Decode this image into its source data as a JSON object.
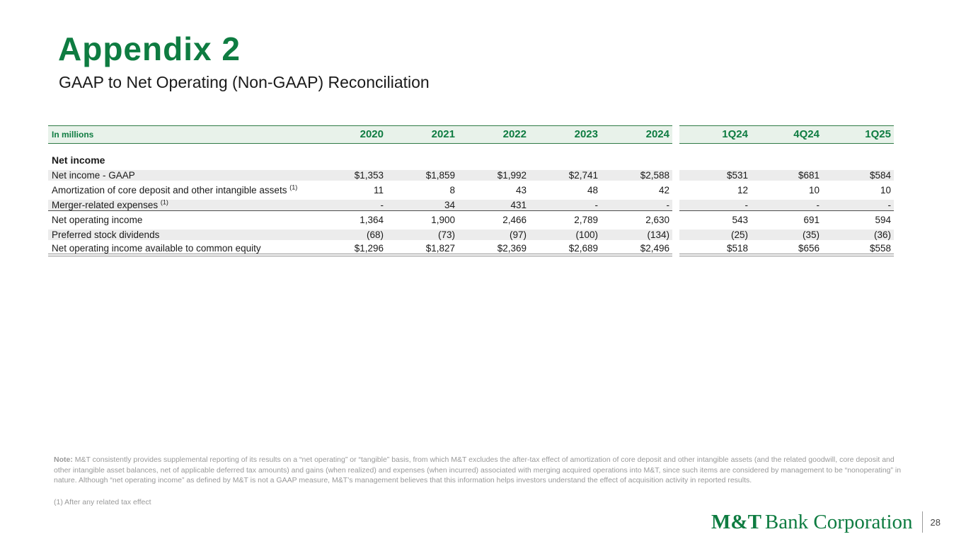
{
  "slide": {
    "title": "Appendix 2",
    "subtitle": "GAAP to Net Operating (Non-GAAP) Reconciliation"
  },
  "colors": {
    "accent_green": "#0e7c41",
    "header_background": "#e8f2ea",
    "row_stripe": "#ececec",
    "note_gray": "#999999"
  },
  "table": {
    "corner_label": "In millions",
    "annual_columns": [
      "2020",
      "2021",
      "2022",
      "2023",
      "2024"
    ],
    "quarter_columns": [
      "1Q24",
      "4Q24",
      "1Q25"
    ],
    "section_header": "Net income",
    "rows": [
      {
        "label": "Net income - GAAP",
        "sup": "",
        "annual": [
          "$1,353",
          "$1,859",
          "$1,992",
          "$2,741",
          "$2,588"
        ],
        "quarters": [
          "$531",
          "$681",
          "$584"
        ]
      },
      {
        "label": "Amortization of core deposit and other intangible assets ",
        "sup": "(1)",
        "annual": [
          "11",
          "8",
          "43",
          "48",
          "42"
        ],
        "quarters": [
          "12",
          "10",
          "10"
        ]
      },
      {
        "label": "Merger-related expenses ",
        "sup": "(1)",
        "annual": [
          "-",
          "34",
          "431",
          "-",
          "-"
        ],
        "quarters": [
          "-",
          "-",
          "-"
        ]
      },
      {
        "label": "Net operating income",
        "sup": "",
        "annual": [
          "1,364",
          "1,900",
          "2,466",
          "2,789",
          "2,630"
        ],
        "quarters": [
          "543",
          "691",
          "594"
        ]
      },
      {
        "label": "Preferred stock dividends",
        "sup": "",
        "annual": [
          "(68)",
          "(73)",
          "(97)",
          "(100)",
          "(134)"
        ],
        "quarters": [
          "(25)",
          "(35)",
          "(36)"
        ]
      },
      {
        "label": "Net operating income available to common equity",
        "sup": "",
        "annual": [
          "$1,296",
          "$1,827",
          "$2,369",
          "$2,689",
          "$2,496"
        ],
        "quarters": [
          "$518",
          "$656",
          "$558"
        ]
      }
    ]
  },
  "notes": {
    "note_label": "Note:",
    "note_text": " M&T consistently provides supplemental reporting of its results on a “net operating” or “tangible” basis, from which M&T excludes the after-tax effect of amortization of core deposit and other intangible assets (and the related goodwill, core deposit and other intangible asset balances, net of applicable deferred tax amounts) and gains (when realized) and expenses (when incurred) associated with merging acquired operations into M&T, since such items are considered by management to be “nonoperating” in nature. Although “net operating income” as defined by M&T is not a GAAP measure, M&T’s management believes that this information helps investors understand the effect of acquisition activity in reported results.",
    "footnote1": "(1) After any related tax effect"
  },
  "footer": {
    "logo_mt": "M&T",
    "logo_rest": "Bank Corporation",
    "page_number": "28"
  }
}
